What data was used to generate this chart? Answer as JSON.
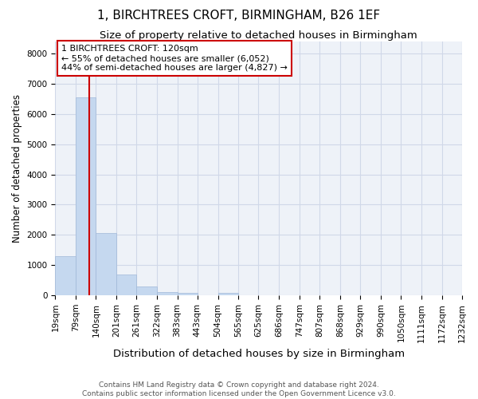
{
  "title": "1, BIRCHTREES CROFT, BIRMINGHAM, B26 1EF",
  "subtitle": "Size of property relative to detached houses in Birmingham",
  "xlabel": "Distribution of detached houses by size in Birmingham",
  "ylabel": "Number of detached properties",
  "footer_line1": "Contains HM Land Registry data © Crown copyright and database right 2024.",
  "footer_line2": "Contains public sector information licensed under the Open Government Licence v3.0.",
  "bar_color": "#c5d8ef",
  "bar_edge_color": "#a0b8d8",
  "grid_color": "#d0d8e8",
  "background_color": "#eef2f8",
  "bin_edges": [
    19,
    79,
    140,
    201,
    261,
    322,
    383,
    443,
    504,
    565,
    625,
    686,
    747,
    807,
    868,
    929,
    990,
    1050,
    1111,
    1172,
    1232
  ],
  "bin_labels": [
    "19sqm",
    "79sqm",
    "140sqm",
    "201sqm",
    "261sqm",
    "322sqm",
    "383sqm",
    "443sqm",
    "504sqm",
    "565sqm",
    "625sqm",
    "686sqm",
    "747sqm",
    "807sqm",
    "868sqm",
    "929sqm",
    "990sqm",
    "1050sqm",
    "1111sqm",
    "1172sqm",
    "1232sqm"
  ],
  "bar_heights": [
    1300,
    6550,
    2050,
    680,
    290,
    120,
    75,
    0,
    80,
    0,
    0,
    0,
    0,
    0,
    0,
    0,
    0,
    0,
    0,
    0
  ],
  "vline_color": "#cc0000",
  "vline_x": 120,
  "annotation_text": "1 BIRCHTREES CROFT: 120sqm\n← 55% of detached houses are smaller (6,052)\n44% of semi-detached houses are larger (4,827) →",
  "annotation_box_color": "#cc0000",
  "ylim": [
    0,
    8400
  ],
  "yticks": [
    0,
    1000,
    2000,
    3000,
    4000,
    5000,
    6000,
    7000,
    8000
  ],
  "title_fontsize": 11,
  "subtitle_fontsize": 9.5,
  "xlabel_fontsize": 9.5,
  "ylabel_fontsize": 8.5,
  "annotation_fontsize": 8,
  "tick_fontsize": 7.5,
  "footer_fontsize": 6.5
}
